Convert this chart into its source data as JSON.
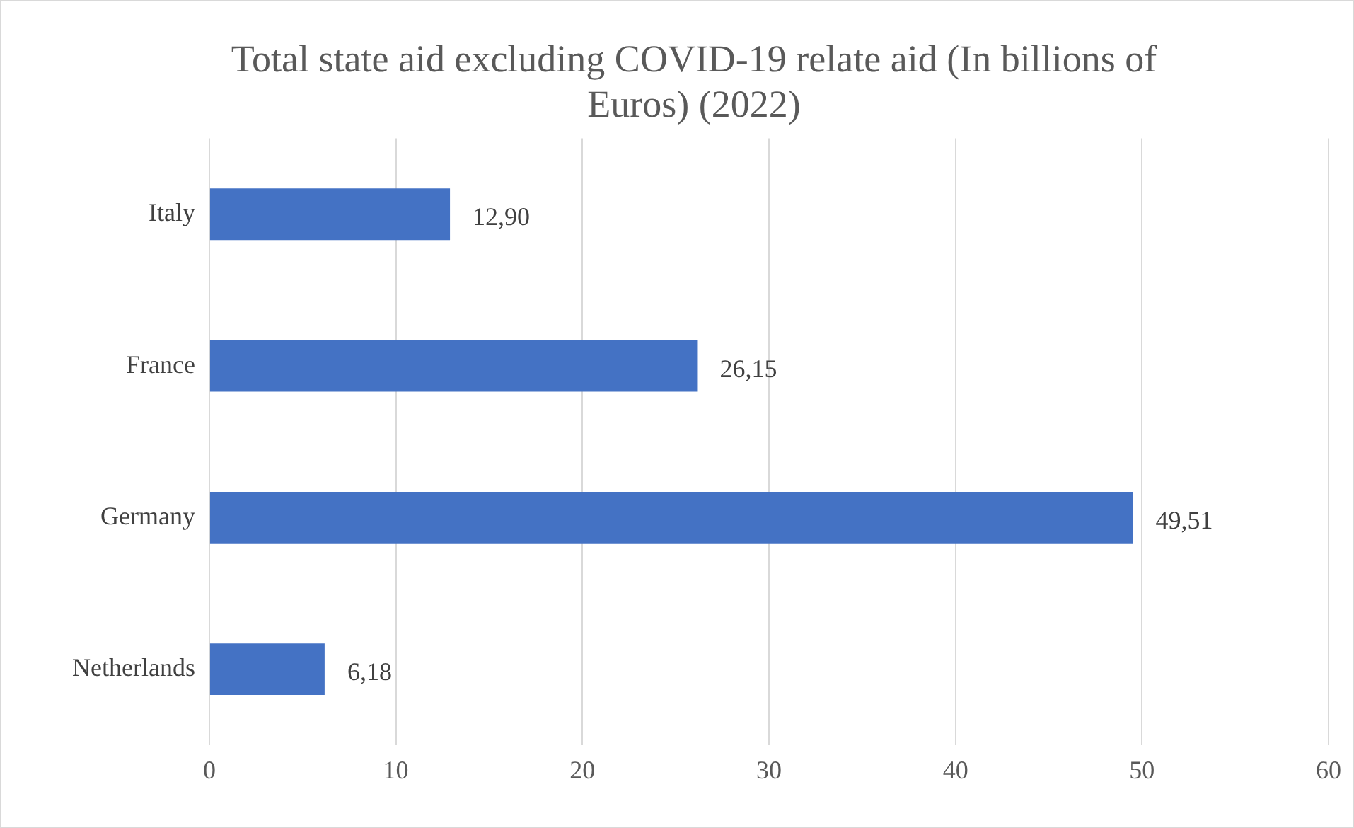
{
  "chart_data": {
    "type": "bar",
    "orientation": "horizontal",
    "title": "Total state aid excluding COVID-19 relate aid (In billions of Euros) (2022)",
    "categories": [
      "Italy",
      "France",
      "Germany",
      "Netherlands"
    ],
    "values": [
      12.9,
      26.15,
      49.51,
      6.18
    ],
    "value_labels": [
      "12,90",
      "26,15",
      "49,51",
      "6,18"
    ],
    "color": "#4472c4",
    "xlim": [
      0,
      60
    ],
    "xticks": [
      0,
      10,
      20,
      30,
      40,
      50,
      60
    ],
    "grid": "x",
    "legend": false
  }
}
